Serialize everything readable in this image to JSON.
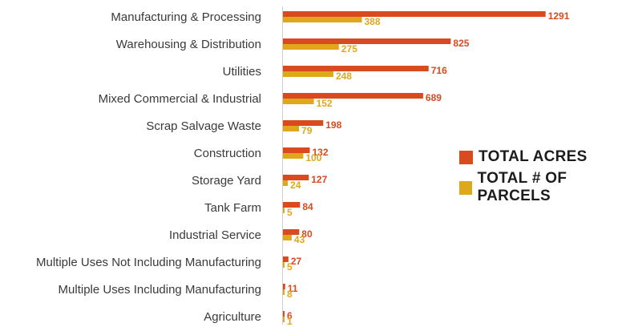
{
  "chart_data": {
    "type": "bar",
    "orientation": "horizontal",
    "categories": [
      "Manufacturing & Processing",
      "Warehousing & Distribution",
      "Utilities",
      "Mixed Commercial & Industrial",
      "Scrap Salvage Waste",
      "Construction",
      "Storage Yard",
      "Tank Farm",
      "Industrial Service",
      "Multiple Uses Not Including Manufacturing",
      "Multiple Uses Including Manufacturing",
      "Agriculture"
    ],
    "series": [
      {
        "name": "TOTAL ACRES",
        "color": "#d94a1e",
        "values": [
          1291,
          825,
          716,
          689,
          198,
          132,
          127,
          84,
          80,
          27,
          11,
          6
        ]
      },
      {
        "name": "TOTAL # OF PARCELS",
        "color": "#e0a71c",
        "values": [
          388,
          275,
          248,
          152,
          79,
          100,
          24,
          5,
          43,
          5,
          8,
          1
        ]
      }
    ],
    "xlim": [
      0,
      1300
    ],
    "grid": false,
    "legend_position": "right"
  }
}
